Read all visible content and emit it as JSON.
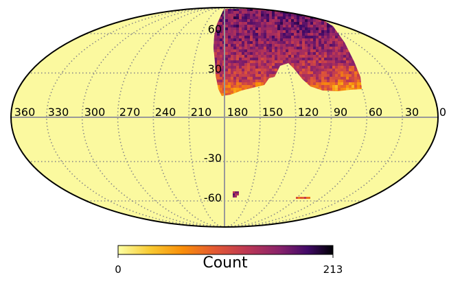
{
  "chart_data": {
    "type": "heatmap",
    "projection": "mollweide",
    "title": "",
    "lon_ticks": [
      "360",
      "330",
      "300",
      "270",
      "240",
      "210",
      "180",
      "150",
      "120",
      "90",
      "60",
      "30",
      "0"
    ],
    "lat_ticks": [
      "60",
      "30",
      "-30",
      "-60"
    ],
    "grid": true,
    "colorbar": {
      "label": "Count",
      "min": "0",
      "max": "213",
      "colormap": "inferno_r",
      "placement": "bottom"
    },
    "regions": [
      {
        "name": "northern-footprint",
        "lon_range": [
          55,
          185
        ],
        "lat_range": [
          5,
          75
        ],
        "typical_count": 160
      },
      {
        "name": "southern-patch-west",
        "lon": 180,
        "lat": -57,
        "typical_count": 170
      },
      {
        "name": "southern-patch-east",
        "lon": 115,
        "lat": -58,
        "typical_count": 90
      }
    ]
  },
  "colors": {
    "background_fill": "#fbf99f",
    "outline": "#000000",
    "graticule": "#888888",
    "axes_cross": "#999999"
  }
}
